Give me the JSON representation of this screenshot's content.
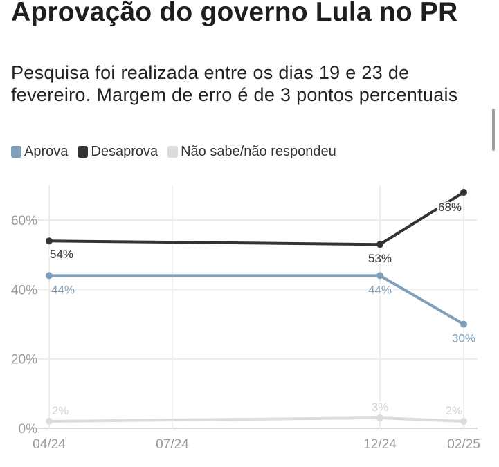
{
  "header": {
    "title": "Aprovação do governo Lula no PR",
    "subtitle": "Pesquisa foi realizada entre os dias 19 e 23 de fevereiro. Margem de erro é de 3 pontos percentuais"
  },
  "legend": {
    "items": [
      {
        "label": "Aprova",
        "color": "#7f9fbb"
      },
      {
        "label": "Desaprova",
        "color": "#333333"
      },
      {
        "label": "Não sabe/não respondeu",
        "color": "#dcdcdc"
      }
    ]
  },
  "chart_data": {
    "type": "line",
    "x": [
      "04/24",
      "12/24",
      "02/25"
    ],
    "x_ticks": [
      "04/24",
      "07/24",
      "12/24",
      "02/25"
    ],
    "y_ticks": [
      "0%",
      "20%",
      "40%",
      "60%"
    ],
    "ylim": [
      0,
      70
    ],
    "grid": true,
    "legend_position": "top-left",
    "series": [
      {
        "name": "Aprova",
        "color": "#7f9fbb",
        "values": [
          44,
          44,
          30
        ],
        "labels": [
          "44%",
          "44%",
          "30%"
        ]
      },
      {
        "name": "Desaprova",
        "color": "#333333",
        "values": [
          54,
          53,
          68
        ],
        "labels": [
          "54%",
          "53%",
          "68%"
        ]
      },
      {
        "name": "Não sabe/não respondeu",
        "color": "#dcdcdc",
        "values": [
          2,
          3,
          2
        ],
        "labels": [
          "2%",
          "3%",
          "2%"
        ]
      }
    ]
  }
}
